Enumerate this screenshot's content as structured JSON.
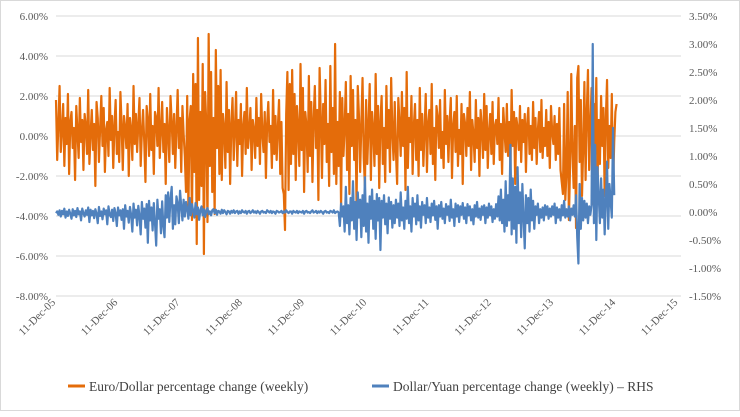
{
  "chart_data": {
    "type": "line",
    "title": "",
    "xlabel": "",
    "ylabel": "",
    "x_start": "2005-12-11",
    "x_end": "2015-12-27",
    "x_tick_labels": [
      "11-Dec-05",
      "11-Dec-06",
      "11-Dec-07",
      "11-Dec-08",
      "11-Dec-09",
      "11-Dec-10",
      "11-Dec-11",
      "11-Dec-12",
      "11-Dec-13",
      "11-Dec-14",
      "11-Dec-15"
    ],
    "y_left": {
      "min": -8,
      "max": 6,
      "step": 2,
      "tick_labels": [
        "6.00%",
        "4.00%",
        "2.00%",
        "0.00%",
        "-2.00%",
        "-4.00%",
        "-6.00%",
        "-8.00%"
      ]
    },
    "y_right": {
      "min": -1.5,
      "max": 3.5,
      "step": 0.5,
      "tick_labels": [
        "3.50%",
        "3.00%",
        "2.50%",
        "2.00%",
        "1.50%",
        "1.00%",
        "0.50%",
        "0.00%",
        "-0.50%",
        "-1.00%",
        "-1.50%"
      ]
    },
    "gridlines": true,
    "legend_position": "bottom",
    "series": [
      {
        "name": "Euro/Dollar percentage change (weekly)",
        "axis": "left",
        "color": "#E46C0A",
        "frequency": "weekly",
        "values": [
          1.8,
          -1.2,
          0.6,
          2.5,
          -0.8,
          0.3,
          1.6,
          -1.5,
          0.9,
          -0.4,
          2.1,
          -1.9,
          0.7,
          1.2,
          -0.6,
          0.4,
          -2.2,
          1.5,
          0.2,
          -1.1,
          1.9,
          -0.3,
          0.8,
          -1.7,
          1.1,
          0.5,
          -0.9,
          2.3,
          -1.4,
          0.1,
          1.3,
          -0.7,
          0.6,
          -2.5,
          1.7,
          0.9,
          -1.3,
          0.4,
          2.0,
          -0.5,
          1.4,
          -1.8,
          0.3,
          0.7,
          -1.0,
          2.4,
          -0.2,
          1.0,
          -1.6,
          0.5,
          1.8,
          -0.9,
          0.2,
          -1.3,
          2.2,
          0.6,
          -1.7,
          1.0,
          0.4,
          -0.6,
          1.6,
          -2.0,
          0.9,
          0.3,
          -1.2,
          2.5,
          -0.4,
          1.1,
          -0.8,
          0.6,
          1.9,
          -1.5,
          0.2,
          1.3,
          -0.3,
          -2.3,
          1.5,
          0.8,
          -1.0,
          2.1,
          -0.7,
          0.5,
          -1.9,
          1.2,
          0.9,
          -0.5,
          2.4,
          -1.1,
          0.3,
          1.7,
          -0.8,
          0.6,
          -2.4,
          1.4,
          0.2,
          -1.3,
          2.0,
          0.7,
          -0.9,
          1.1,
          -1.6,
          0.4,
          2.3,
          -0.6,
          0.9,
          -1.8,
          1.5,
          0.1,
          -1.0,
          -2.8,
          2.0,
          -3.6,
          0.8,
          1.5,
          -4.2,
          3.1,
          -1.8,
          2.6,
          -5.4,
          4.9,
          -3.2,
          1.2,
          -2.5,
          3.6,
          -5.9,
          2.2,
          0.6,
          -4.3,
          5.1,
          -1.5,
          3.2,
          -2.8,
          0.9,
          -3.9,
          4.3,
          -0.6,
          2.5,
          -1.9,
          3.3,
          -2.2,
          1.1,
          0.4,
          -1.6,
          2.7,
          -0.8,
          1.3,
          -2.4,
          0.6,
          1.9,
          -1.2,
          0.3,
          2.2,
          -1.5,
          0.8,
          -0.4,
          1.6,
          -2.0,
          0.5,
          1.2,
          -0.9,
          2.4,
          -0.6,
          0.2,
          1.4,
          -1.7,
          0.8,
          0.3,
          -1.1,
          1.9,
          -0.5,
          0.9,
          -1.4,
          2.1,
          0.1,
          -0.8,
          1.2,
          -2.1,
          0.6,
          1.7,
          -0.3,
          0.5,
          -1.6,
          2.3,
          -0.9,
          1.0,
          -1.2,
          0.4,
          1.8,
          -1.9,
          0.7,
          -2.6,
          -2.9,
          -4.7,
          1.1,
          3.2,
          -2.7,
          2.6,
          -1.4,
          3.3,
          -0.9,
          2.1,
          -2.2,
          1.5,
          0.4,
          -1.5,
          3.6,
          -0.7,
          2.4,
          -2.8,
          1.2,
          0.5,
          -1.8,
          3.0,
          -1.0,
          1.7,
          -2.3,
          0.8,
          2.5,
          -0.6,
          1.3,
          -3.2,
          3.4,
          0.9,
          -2.1,
          1.6,
          -0.4,
          2.8,
          -1.3,
          0.6,
          -2.5,
          3.5,
          -0.8,
          1.4,
          -1.9,
          4.6,
          -2.4,
          0.7,
          -1.5,
          2.2,
          -3.6,
          1.9,
          -1.0,
          0.4,
          2.7,
          -1.7,
          1.1,
          -2.9,
          3.0,
          -0.5,
          2.3,
          -1.2,
          0.8,
          -3.4,
          2.5,
          1.0,
          -1.8,
          0.6,
          2.9,
          -1.1,
          -2.5,
          1.8,
          -1.4,
          0.5,
          2.6,
          -2.2,
          1.2,
          0.3,
          -1.5,
          3.1,
          -0.9,
          1.5,
          -2.6,
          0.7,
          2.0,
          -1.4,
          0.4,
          -2.3,
          2.5,
          -0.6,
          1.3,
          -1.8,
          2.9,
          0.2,
          -1.2,
          1.7,
          -0.8,
          -2.4,
          1.9,
          0.6,
          -1.0,
          2.2,
          -0.5,
          1.4,
          -2.7,
          3.2,
          -1.6,
          0.9,
          -0.3,
          2.0,
          -1.9,
          0.5,
          1.6,
          -1.2,
          0.8,
          -2.0,
          2.4,
          -0.7,
          1.1,
          -1.5,
          0.3,
          2.1,
          -1.8,
          0.6,
          1.3,
          -0.9,
          2.6,
          -1.4,
          0.4,
          -2.2,
          1.5,
          0.9,
          -0.6,
          1.8,
          -1.1,
          0.2,
          -1.6,
          2.3,
          -0.4,
          1.0,
          -1.3,
          0.7,
          1.9,
          -2.1,
          0.5,
          1.2,
          -0.8,
          2.0,
          -1.5,
          0.3,
          -0.9,
          1.6,
          -2.4,
          1.1,
          0.6,
          -1.0,
          1.4,
          -0.5,
          2.2,
          -1.7,
          0.8,
          0.1,
          -1.3,
          1.8,
          -0.6,
          0.9,
          -2.0,
          1.3,
          0.4,
          -1.1,
          2.1,
          -0.7,
          1.5,
          -1.6,
          0.2,
          1.1,
          -0.9,
          1.7,
          -1.4,
          0.5,
          0.8,
          -0.4,
          1.9,
          -1.2,
          0.6,
          -1.9,
          1.4,
          0.3,
          -0.8,
          1.6,
          -1.0,
          0.7,
          -1.5,
          2.3,
          -0.5,
          1.2,
          -2.4,
          0.9,
          0.4,
          -0.7,
          1.5,
          -1.3,
          0.8,
          -0.3,
          1.1,
          -1.8,
          0.6,
          1.4,
          -0.9,
          0.5,
          -1.2,
          1.7,
          -0.6,
          0.9,
          -1.4,
          0.3,
          1.2,
          -0.8,
          1.8,
          -1.1,
          0.4,
          -0.5,
          1.3,
          -1.0,
          0.7,
          -1.6,
          1.5,
          0.2,
          -0.4,
          1.0,
          -1.2,
          0.6,
          -0.9,
          1.4,
          -1.7,
          -2.3,
          -2.9,
          1.6,
          -3.2,
          -1.8,
          2.2,
          -4.2,
          -1.5,
          3.1,
          -0.8,
          -2.6,
          0.5,
          -4.6,
          2.9,
          3.5,
          -1.3,
          1.8,
          -3.0,
          -0.6,
          2.7,
          -2.2,
          1.1,
          3.3,
          -1.7,
          0.4,
          2.4,
          -3.4,
          1.6,
          -0.9,
          2.9,
          -2.4,
          0.8,
          -1.4,
          2.0,
          -0.5,
          1.4,
          -3.0,
          0.9,
          2.8,
          -1.6,
          0.5,
          -1.1,
          2.1,
          -2.6,
          -0.3,
          1.2,
          1.6
        ]
      },
      {
        "name": "Dollar/Yuan percentage change (weekly) - RHS",
        "legend_label": "Dollar/Yuan percentage change (weekly) – RHS",
        "axis": "right",
        "color": "#4F81BD",
        "frequency": "weekly",
        "values": [
          -0.02,
          0.01,
          -0.05,
          0.03,
          -0.08,
          0.02,
          -0.04,
          0.06,
          -0.1,
          0.01,
          -0.07,
          0.04,
          -0.03,
          -0.12,
          0.05,
          -0.06,
          0.02,
          -0.09,
          0.07,
          -0.04,
          0.01,
          -0.15,
          0.06,
          -0.02,
          -0.08,
          0.03,
          -0.05,
          0.08,
          -0.18,
          0.04,
          -0.06,
          0.02,
          -0.11,
          0.05,
          -0.03,
          -0.2,
          0.09,
          -0.07,
          0.01,
          -0.13,
          0.06,
          -0.04,
          0.03,
          -0.22,
          0.1,
          -0.05,
          -0.09,
          0.04,
          -0.16,
          0.07,
          -0.02,
          -0.25,
          0.08,
          -0.06,
          0.03,
          -0.14,
          0.05,
          -0.3,
          0.12,
          -0.08,
          0.02,
          -0.19,
          0.09,
          -0.05,
          -0.35,
          0.15,
          -0.1,
          0.04,
          -0.24,
          0.11,
          -0.07,
          -0.4,
          0.18,
          -0.12,
          0.06,
          -0.28,
          0.14,
          -0.55,
          0.2,
          -0.15,
          0.08,
          -0.33,
          0.16,
          -0.2,
          -0.6,
          0.22,
          -0.12,
          0.05,
          -0.38,
          0.19,
          -0.25,
          -0.45,
          0.3,
          -0.1,
          0.35,
          -0.18,
          0.24,
          0.45,
          -0.3,
          0.12,
          -0.22,
          0.28,
          0.15,
          -0.2,
          0.38,
          0.1,
          -0.15,
          0.22,
          -0.08,
          0.18,
          0.05,
          -0.12,
          0.25,
          -0.06,
          0.14,
          0.02,
          -0.1,
          0.16,
          -0.04,
          0.08,
          -0.14,
          0.03,
          0.1,
          -0.06,
          0.05,
          -0.09,
          0.02,
          0.07,
          -0.04,
          0.01,
          -0.06,
          0.03,
          0.05,
          -0.02,
          0.04,
          -0.05,
          0.02,
          0.01,
          -0.03,
          0.04,
          -0.02,
          0.03,
          0.0,
          -0.04,
          0.02,
          0.01,
          -0.03,
          0.02,
          -0.01,
          0.03,
          -0.02,
          0.01,
          0.02,
          -0.03,
          0.01,
          -0.02,
          0.03,
          0.0,
          -0.01,
          0.02,
          -0.03,
          0.01,
          0.02,
          -0.02,
          0.0,
          0.03,
          -0.01,
          0.01,
          -0.02,
          0.02,
          0.0,
          -0.03,
          0.01,
          0.02,
          -0.01,
          0.0,
          -0.02,
          0.03,
          0.01,
          -0.01,
          0.02,
          -0.02,
          0.01,
          0.0,
          -0.03,
          0.02,
          0.01,
          -0.01,
          0.0,
          0.02,
          -0.02,
          0.01,
          -0.01,
          0.03,
          0.0,
          -0.02,
          0.01,
          0.01,
          -0.03,
          0.02,
          0.0,
          -0.01,
          0.02,
          -0.02,
          0.01,
          0.0,
          -0.01,
          0.02,
          -0.03,
          0.01,
          0.02,
          -0.01,
          0.0,
          -0.02,
          0.01,
          0.03,
          -0.01,
          0.0,
          0.02,
          -0.02,
          0.01,
          -0.01,
          0.02,
          0.0,
          -0.03,
          0.01,
          0.02,
          -0.01,
          0.0,
          -0.02,
          0.02,
          0.01,
          -0.01,
          0.03,
          -0.02,
          0.0,
          0.01,
          -0.01,
          -0.25,
          0.15,
          -0.08,
          0.1,
          -0.35,
          0.45,
          -0.2,
          0.12,
          -0.4,
          0.25,
          -0.15,
          0.55,
          -0.3,
          0.18,
          -0.5,
          0.35,
          -0.1,
          0.22,
          -0.45,
          0.3,
          -0.25,
          0.62,
          -0.35,
          0.15,
          -0.55,
          0.28,
          -0.12,
          0.4,
          -0.3,
          0.2,
          -0.48,
          0.32,
          -0.15,
          0.25,
          -0.68,
          0.2,
          -0.1,
          0.3,
          -0.22,
          0.15,
          -0.38,
          0.26,
          -0.12,
          0.18,
          -0.28,
          0.12,
          -0.2,
          0.22,
          -0.1,
          0.15,
          -0.25,
          0.35,
          -0.15,
          0.08,
          -0.3,
          0.2,
          -0.12,
          0.45,
          -0.2,
          0.1,
          -0.35,
          0.25,
          -0.08,
          0.15,
          -0.22,
          0.3,
          -0.15,
          0.1,
          -0.28,
          0.18,
          -0.05,
          0.12,
          -0.2,
          0.25,
          -0.1,
          0.08,
          -0.18,
          0.15,
          -0.06,
          0.2,
          -0.14,
          0.1,
          -0.3,
          0.12,
          -0.08,
          0.18,
          -0.12,
          0.06,
          -0.2,
          0.14,
          -0.05,
          0.1,
          -0.16,
          0.22,
          -0.1,
          0.05,
          -0.25,
          0.15,
          -0.08,
          0.12,
          -0.18,
          0.1,
          -0.05,
          0.16,
          -0.12,
          0.08,
          -0.2,
          0.14,
          -0.06,
          0.1,
          -0.15,
          0.05,
          -0.22,
          0.12,
          -0.08,
          0.18,
          -0.1,
          0.06,
          -0.14,
          0.1,
          -0.05,
          0.12,
          -0.2,
          0.08,
          -0.1,
          0.15,
          -0.06,
          0.1,
          -0.18,
          0.05,
          -0.12,
          0.14,
          -0.08,
          0.28,
          -0.15,
          0.4,
          -0.2,
          0.22,
          -0.35,
          0.55,
          -0.25,
          0.3,
          -0.15,
          1.2,
          -0.4,
          0.6,
          -0.3,
          0.45,
          -0.55,
          0.8,
          -0.2,
          0.35,
          -0.45,
          0.5,
          -0.1,
          -0.65,
          0.3,
          -0.2,
          0.25,
          -0.35,
          0.4,
          -0.15,
          0.2,
          -0.3,
          0.1,
          -0.05,
          0.15,
          -0.2,
          0.05,
          -0.1,
          0.08,
          -0.15,
          0.12,
          -0.05,
          0.1,
          -0.12,
          0.06,
          -0.08,
          0.1,
          -0.05,
          0.15,
          -0.2,
          0.08,
          -0.1,
          0.05,
          -0.15,
          0.12,
          -0.06,
          0.2,
          -0.1,
          0.05,
          -0.08,
          0.1,
          -0.15,
          0.06,
          -0.05,
          0.12,
          -0.08,
          0.3,
          -0.45,
          -0.92,
          0.5,
          -0.3,
          0.25,
          -0.15,
          0.2,
          -0.1,
          0.15,
          -0.2,
          0.1,
          -0.05,
          0.12,
          3.0,
          -0.2,
          1.2,
          -0.5,
          0.8,
          0.3,
          -0.2,
          0.6,
          -0.1,
          0.4,
          -0.4,
          0.2,
          0.9,
          -0.3,
          0.5,
          0.2,
          -0.1,
          1.5,
          0.3
        ]
      }
    ]
  }
}
